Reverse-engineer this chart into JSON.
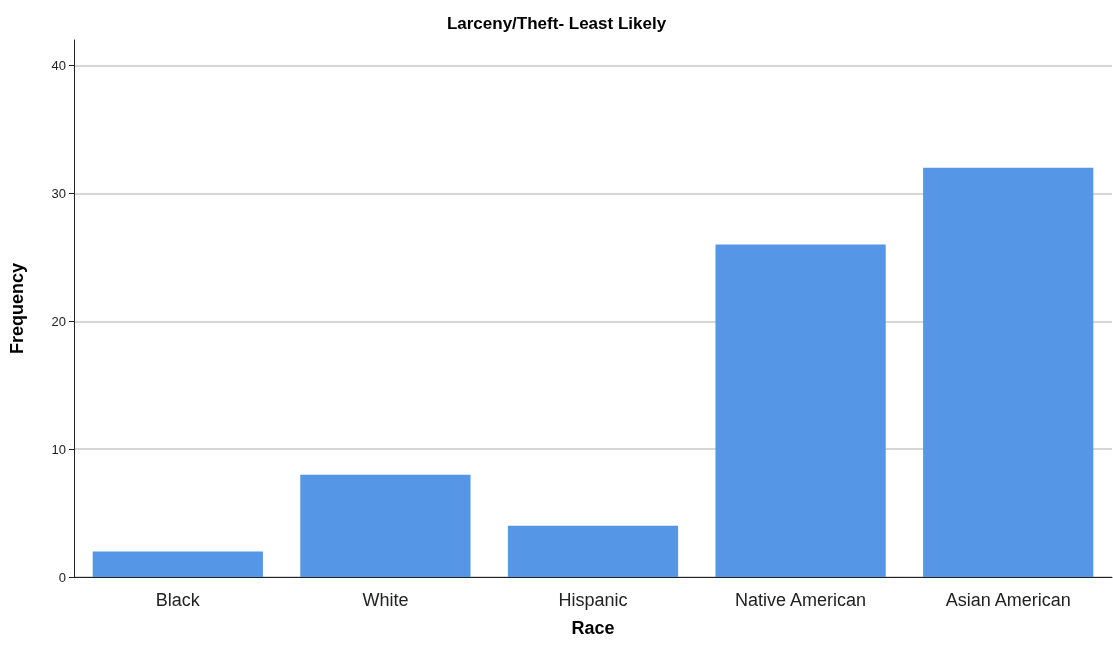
{
  "chart_data": {
    "type": "bar",
    "title": "Larceny/Theft- Least Likely",
    "xlabel": "Race",
    "ylabel": "Frequency",
    "categories": [
      "Black",
      "White",
      "Hispanic",
      "Native American",
      "Asian American"
    ],
    "values": [
      2,
      8,
      4,
      26,
      32
    ],
    "color": "#5596e6",
    "ylim": [
      0,
      42
    ],
    "yticks": [
      0,
      10,
      20,
      30,
      40
    ],
    "grid": "y"
  }
}
